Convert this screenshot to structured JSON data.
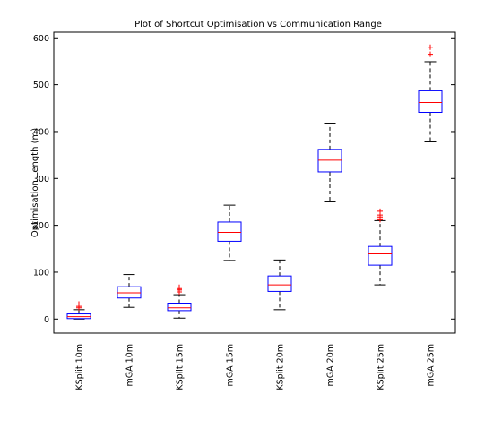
{
  "chart_data": {
    "type": "box",
    "title": "Plot of Shortcut Optimisation vs Communication Range",
    "xlabel": "",
    "ylabel": "Optimisation Length (m)",
    "ylim": [
      -30,
      612
    ],
    "yticks": [
      0,
      100,
      200,
      300,
      400,
      500,
      600
    ],
    "grid": false,
    "colors": {
      "box": "#0000ff",
      "median": "#ff0000",
      "whisker": "#000000",
      "outlier": "#ff0000",
      "axes": "#000000"
    },
    "categories": [
      "KSplit 10m",
      "mGA 10m",
      "KSplit 15m",
      "mGA 15m",
      "KSplit 20m",
      "mGA 20m",
      "KSplit 25m",
      "mGA 25m"
    ],
    "boxes": [
      {
        "label": "KSplit 10m",
        "whisker_low": 0,
        "q1": 1,
        "median": 5,
        "q3": 11,
        "whisker_high": 20,
        "outliers": [
          24,
          27,
          32
        ]
      },
      {
        "label": "mGA 10m",
        "whisker_low": 25,
        "q1": 45,
        "median": 56,
        "q3": 69,
        "whisker_high": 95,
        "outliers": []
      },
      {
        "label": "KSplit 15m",
        "whisker_low": 2,
        "q1": 18,
        "median": 24,
        "q3": 34,
        "whisker_high": 52,
        "outliers": [
          58,
          62,
          64,
          68
        ]
      },
      {
        "label": "mGA 15m",
        "whisker_low": 125,
        "q1": 166,
        "median": 185,
        "q3": 207,
        "whisker_high": 243,
        "outliers": []
      },
      {
        "label": "KSplit 20m",
        "whisker_low": 20,
        "q1": 59,
        "median": 73,
        "q3": 92,
        "whisker_high": 126,
        "outliers": []
      },
      {
        "label": "mGA 20m",
        "whisker_low": 250,
        "q1": 314,
        "median": 339,
        "q3": 362,
        "whisker_high": 418,
        "outliers": []
      },
      {
        "label": "KSplit 25m",
        "whisker_low": 73,
        "q1": 115,
        "median": 139,
        "q3": 155,
        "whisker_high": 210,
        "outliers": [
          212,
          218,
          222,
          230
        ]
      },
      {
        "label": "mGA 25m",
        "whisker_low": 378,
        "q1": 441,
        "median": 462,
        "q3": 487,
        "whisker_high": 549,
        "outliers": [
          565,
          580
        ]
      }
    ]
  }
}
